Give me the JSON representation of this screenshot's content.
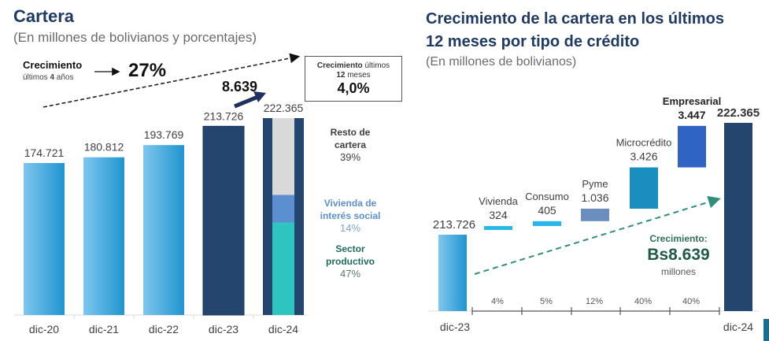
{
  "left": {
    "title": "Cartera",
    "subtitle": "(En millones de bolivianos y porcentajes)",
    "growth4y": {
      "label": "Crecimiento",
      "sublabel_pre": "últimos ",
      "sublabel_num": "4",
      "sublabel_post": " años",
      "value": "27%"
    },
    "growth12m": {
      "label_bold": "Crecimiento",
      "label_rest": " últimos",
      "label2_num": "12",
      "label2_rest": " meses",
      "value": "4,0%"
    },
    "increment_label": "8.639",
    "composition": [
      {
        "name_line1": "Resto de",
        "name_line2": "cartera",
        "pct": "39%",
        "color": "#d9d9d9",
        "text_color": "#404040"
      },
      {
        "name_line1": "Vivienda de",
        "name_line2": "interés social",
        "pct": "14%",
        "color": "#5b8fd0",
        "text_color": "#5b8fd0"
      },
      {
        "name_line1": "Sector",
        "name_line2": "productivo",
        "pct": "47%",
        "color": "#2ec4c0",
        "text_color": "#1f6b5c"
      }
    ]
  },
  "right": {
    "title_line1": "Crecimiento de la cartera en los últimos",
    "title_line2": "12 meses por tipo de crédito",
    "subtitle": "(En millones de bolivianos)",
    "growth": {
      "label": "Crecimiento:",
      "value": "Bs8.639",
      "unit": "millones"
    }
  },
  "chart_data": [
    {
      "type": "bar",
      "title": "Cartera",
      "subtitle": "(En millones de bolivianos y porcentajes)",
      "categories": [
        "dic-20",
        "dic-21",
        "dic-22",
        "dic-23",
        "dic-24"
      ],
      "values": [
        174721,
        180812,
        193769,
        213726,
        222365
      ],
      "value_labels": [
        "174.721",
        "180.812",
        "193.769",
        "213.726",
        "222.365"
      ],
      "stacked_last": {
        "category": "dic-24",
        "segments": [
          {
            "name": "Sector productivo",
            "pct": 47
          },
          {
            "name": "Vivienda de interés social",
            "pct": 14
          },
          {
            "name": "Resto de cartera",
            "pct": 39
          }
        ]
      },
      "colors": {
        "light": "#4aaee0",
        "dark": "#24466e"
      },
      "ylim": [
        0,
        240000
      ],
      "grid": false
    },
    {
      "type": "bar",
      "subtype": "waterfall",
      "title": "Crecimiento de la cartera en los últimos 12 meses por tipo de crédito",
      "subtitle": "(En millones de bolivianos)",
      "start": {
        "label": "dic-23",
        "value": 213726,
        "value_label": "213.726"
      },
      "end": {
        "label": "dic-24",
        "value": 222365,
        "value_label": "222.365"
      },
      "steps": [
        {
          "name": "Vivienda",
          "value": 324,
          "value_label": "324",
          "share": "4%",
          "color": "#29b6e8"
        },
        {
          "name": "Consumo",
          "value": 405,
          "value_label": "405",
          "share": "5%",
          "color": "#29b6e8"
        },
        {
          "name": "Pyme",
          "value": 1036,
          "value_label": "1.036",
          "share": "12%",
          "color": "#6a8fbf"
        },
        {
          "name": "Microcrédito",
          "value": 3426,
          "value_label": "3.426",
          "share": "40%",
          "color": "#1a8fbf"
        },
        {
          "name": "Empresarial",
          "value": 3447,
          "value_label": "3.447",
          "share": "40%",
          "color": "#2f64c4"
        }
      ],
      "grid": false
    }
  ]
}
